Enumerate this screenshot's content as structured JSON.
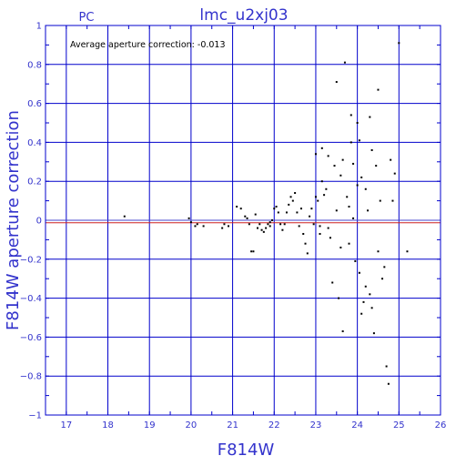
{
  "chart_data": {
    "type": "scatter",
    "title": "lmc_u2xj03",
    "corner_label": "PC",
    "annotation": "Average aperture correction: -0.013",
    "xlabel": "F814W",
    "ylabel": "F814W aperture correction",
    "xlim": [
      16.5,
      26
    ],
    "ylim": [
      -1,
      1
    ],
    "x_ticks": [
      "17",
      "18",
      "19",
      "20",
      "21",
      "22",
      "23",
      "24",
      "25",
      "26"
    ],
    "y_ticks": [
      "−1",
      "−0.8",
      "−0.6",
      "−0.4",
      "−0.2",
      "0",
      "0.2",
      "0.4",
      "0.6",
      "0.8",
      "1"
    ],
    "y_tick_values": [
      -1,
      -0.8,
      -0.6,
      -0.4,
      -0.2,
      0,
      0.2,
      0.4,
      0.6,
      0.8,
      1
    ],
    "grid": true,
    "reference_lines": [
      0,
      -0.013
    ],
    "colors": {
      "axes": "#0000cc",
      "text": "#3333cc",
      "points": "#000000",
      "reference_zero": "#4444cc",
      "reference_average": "#cc2222"
    },
    "series": [
      {
        "values": [
          [
            18.4,
            0.02
          ],
          [
            19.95,
            0.01
          ],
          [
            20.0,
            -0.01
          ],
          [
            20.1,
            -0.03
          ],
          [
            20.15,
            -0.02
          ],
          [
            20.3,
            -0.03
          ],
          [
            20.75,
            -0.04
          ],
          [
            20.8,
            -0.02
          ],
          [
            20.9,
            -0.03
          ],
          [
            21.1,
            0.07
          ],
          [
            21.2,
            0.06
          ],
          [
            21.3,
            0.02
          ],
          [
            21.35,
            0.01
          ],
          [
            21.4,
            -0.02
          ],
          [
            21.45,
            -0.16
          ],
          [
            21.5,
            -0.16
          ],
          [
            21.55,
            0.03
          ],
          [
            21.6,
            -0.04
          ],
          [
            21.65,
            -0.02
          ],
          [
            21.7,
            -0.05
          ],
          [
            21.75,
            -0.06
          ],
          [
            21.8,
            -0.04
          ],
          [
            21.85,
            -0.02
          ],
          [
            21.9,
            -0.03
          ],
          [
            21.9,
            -0.01
          ],
          [
            21.95,
            0.0
          ],
          [
            22.0,
            0.06
          ],
          [
            22.05,
            0.07
          ],
          [
            22.1,
            0.04
          ],
          [
            22.15,
            -0.02
          ],
          [
            22.2,
            -0.05
          ],
          [
            22.25,
            -0.02
          ],
          [
            22.3,
            0.04
          ],
          [
            22.35,
            0.08
          ],
          [
            22.4,
            0.12
          ],
          [
            22.45,
            0.1
          ],
          [
            22.5,
            0.14
          ],
          [
            22.55,
            0.04
          ],
          [
            22.6,
            -0.03
          ],
          [
            22.65,
            0.06
          ],
          [
            22.7,
            -0.07
          ],
          [
            22.75,
            -0.12
          ],
          [
            22.8,
            -0.17
          ],
          [
            22.85,
            0.02
          ],
          [
            22.9,
            0.06
          ],
          [
            22.95,
            -0.02
          ],
          [
            23.0,
            0.12
          ],
          [
            23.0,
            0.34
          ],
          [
            23.05,
            0.1
          ],
          [
            23.1,
            -0.03
          ],
          [
            23.1,
            -0.07
          ],
          [
            23.15,
            0.2
          ],
          [
            23.15,
            0.37
          ],
          [
            23.2,
            0.13
          ],
          [
            23.25,
            0.16
          ],
          [
            23.3,
            0.33
          ],
          [
            23.3,
            -0.04
          ],
          [
            23.35,
            -0.09
          ],
          [
            23.4,
            -0.32
          ],
          [
            23.45,
            0.28
          ],
          [
            23.5,
            0.05
          ],
          [
            23.5,
            0.71
          ],
          [
            23.55,
            -0.4
          ],
          [
            23.6,
            0.23
          ],
          [
            23.6,
            -0.14
          ],
          [
            23.65,
            0.31
          ],
          [
            23.65,
            -0.57
          ],
          [
            23.7,
            0.81
          ],
          [
            23.75,
            0.12
          ],
          [
            23.8,
            0.07
          ],
          [
            23.8,
            -0.12
          ],
          [
            23.85,
            0.54
          ],
          [
            23.85,
            0.4
          ],
          [
            23.9,
            0.29
          ],
          [
            23.9,
            0.01
          ],
          [
            23.95,
            -0.21
          ],
          [
            24.0,
            0.5
          ],
          [
            24.0,
            0.18
          ],
          [
            24.05,
            0.41
          ],
          [
            24.05,
            -0.27
          ],
          [
            24.1,
            0.22
          ],
          [
            24.1,
            -0.48
          ],
          [
            24.15,
            -0.42
          ],
          [
            24.2,
            0.16
          ],
          [
            24.2,
            -0.34
          ],
          [
            24.25,
            0.05
          ],
          [
            24.3,
            0.53
          ],
          [
            24.3,
            -0.38
          ],
          [
            24.35,
            0.36
          ],
          [
            24.35,
            -0.45
          ],
          [
            24.4,
            -0.58
          ],
          [
            24.45,
            0.28
          ],
          [
            24.5,
            0.67
          ],
          [
            24.5,
            -0.16
          ],
          [
            24.55,
            0.1
          ],
          [
            24.6,
            -0.3
          ],
          [
            24.65,
            -0.24
          ],
          [
            24.7,
            -0.75
          ],
          [
            24.75,
            -0.84
          ],
          [
            24.8,
            0.31
          ],
          [
            24.85,
            0.1
          ],
          [
            24.9,
            0.24
          ],
          [
            25.0,
            0.91
          ],
          [
            25.2,
            -0.16
          ]
        ]
      }
    ]
  }
}
